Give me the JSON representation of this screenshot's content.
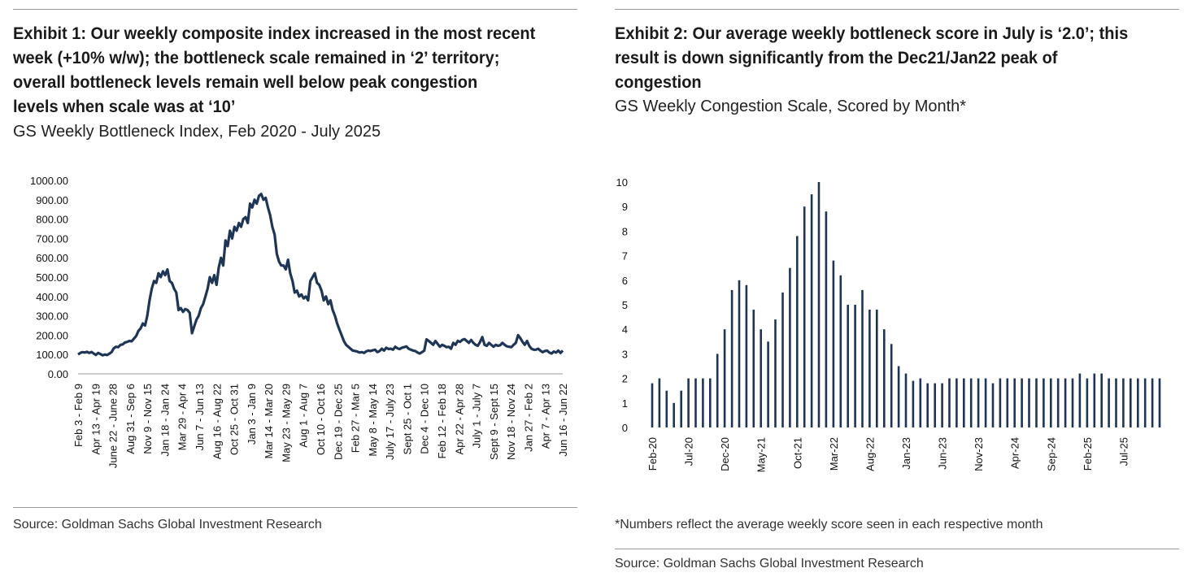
{
  "exhibit1": {
    "title_lines": [
      "Exhibit 1: Our weekly composite index increased in the most recent",
      "week (+10% w/w); the bottleneck scale remained in ‘2’ territory;",
      "overall bottleneck levels remain well below peak congestion",
      "levels when scale was at ‘10’"
    ],
    "subtitle": "GS Weekly Bottleneck Index, Feb 2020 - July 2025",
    "source": "Source: Goldman Sachs Global Investment Research"
  },
  "exhibit2": {
    "title_lines": [
      "Exhibit 2: Our average weekly bottleneck score in July is ‘2.0’; this",
      "result is down significantly from the Dec21/Jan22 peak of",
      "congestion"
    ],
    "subtitle": "GS Weekly Congestion Scale, Scored by Month*",
    "footnote": "*Numbers reflect the average weekly score seen in each respective month",
    "source": "Source: Goldman Sachs Global Investment Research"
  },
  "chart_data": [
    {
      "type": "line",
      "title": "GS Weekly Bottleneck Index, Feb 2020 - July 2025",
      "series_color": "#1f3556",
      "ylim": [
        0,
        1000
      ],
      "y_ticks": [
        "0.00",
        "100.00",
        "200.00",
        "300.00",
        "400.00",
        "500.00",
        "600.00",
        "700.00",
        "800.00",
        "900.00",
        "1000.00"
      ],
      "x_tick_labels": [
        "Feb 3 - Feb 9",
        "Apr 13 - Apr 19",
        "June 22 - June 28",
        "Aug 31 - Sep 6",
        "Nov 9 - Nov 15",
        "Jan 18 - Jan 24",
        "Mar 29 - Apr 4",
        "Jun 7 - Jun 13",
        "Aug 16 - Aug 22",
        "Oct 25 - Oct 31",
        "Jan 3 - Jan 9",
        "Mar 14 - Mar 20",
        "May 23 - May 29",
        "Aug 1 - Aug 7",
        "Oct 10 - Oct 16",
        "Dec 19 - Dec 25",
        "Feb 27 - Mar 5",
        "May 8 - May 14",
        "July 17 - July 23",
        "Sept 25 - Oct 1",
        "Dec 4 - Dec 10",
        "Feb 12 - Feb 18",
        "Apr 22 - Apr 28",
        "July 1 - July 7",
        "Sept 9 - Sept 15",
        "Nov 18 - Nov 24",
        "Jan 27 - Feb 2",
        "Apr 7 - Apr 13",
        "Jun 16 - Jun 22"
      ],
      "values": [
        100,
        108,
        112,
        110,
        114,
        108,
        113,
        105,
        98,
        108,
        102,
        96,
        100,
        97,
        104,
        112,
        132,
        140,
        138,
        150,
        152,
        162,
        165,
        170,
        168,
        182,
        195,
        222,
        235,
        260,
        250,
        300,
        380,
        440,
        480,
        470,
        520,
        500,
        530,
        510,
        540,
        480,
        470,
        440,
        420,
        330,
        340,
        320,
        335,
        330,
        315,
        210,
        245,
        280,
        300,
        340,
        360,
        400,
        440,
        500,
        470,
        510,
        460,
        550,
        600,
        560,
        690,
        660,
        740,
        700,
        760,
        740,
        780,
        760,
        800,
        810,
        780,
        880,
        860,
        900,
        880,
        920,
        930,
        900,
        910,
        860,
        820,
        760,
        720,
        620,
        580,
        560,
        560,
        540,
        590,
        520,
        480,
        420,
        430,
        400,
        410,
        390,
        400,
        380,
        480,
        500,
        520,
        470,
        460,
        430,
        380,
        400,
        360,
        380,
        330,
        300,
        260,
        230,
        200,
        170,
        150,
        140,
        130,
        120,
        118,
        115,
        110,
        112,
        108,
        116,
        120,
        118,
        122,
        125,
        112,
        118,
        130,
        120,
        135,
        128,
        130,
        125,
        140,
        132,
        128,
        135,
        138,
        142,
        130,
        125,
        120,
        118,
        110,
        105,
        112,
        120,
        178,
        170,
        160,
        150,
        170,
        155,
        140,
        150,
        145,
        138,
        140,
        130,
        160,
        150,
        170,
        165,
        175,
        180,
        170,
        160,
        175,
        160,
        150,
        145,
        165,
        190,
        150,
        145,
        160,
        150,
        140,
        150,
        145,
        148,
        160,
        150,
        142,
        140,
        138,
        150,
        160,
        200,
        185,
        165,
        150,
        170,
        145,
        130,
        125,
        125,
        130,
        120,
        112,
        118,
        120,
        110,
        105,
        115,
        110,
        120,
        108,
        120
      ]
    },
    {
      "type": "bar",
      "title": "GS Weekly Congestion Scale, Scored by Month*",
      "series_color": "#1f3556",
      "ylim": [
        0,
        10
      ],
      "y_ticks": [
        "0",
        "1",
        "2",
        "3",
        "4",
        "5",
        "6",
        "7",
        "8",
        "9",
        "10"
      ],
      "x_tick_labels": [
        "Feb-20",
        "Jul-20",
        "Dec-20",
        "May-21",
        "Oct-21",
        "Mar-22",
        "Aug-22",
        "Jan-23",
        "Jun-23",
        "Nov-23",
        "Apr-24",
        "Sep-24",
        "Feb-25",
        "Jul-25"
      ],
      "values": [
        1.8,
        2.0,
        1.5,
        1.0,
        1.5,
        2.0,
        2.0,
        2.0,
        2.0,
        3.0,
        4.0,
        5.6,
        6.0,
        5.8,
        4.8,
        4.0,
        3.5,
        4.4,
        5.5,
        6.5,
        7.8,
        9.0,
        9.5,
        10.0,
        8.8,
        6.8,
        6.2,
        5.0,
        5.0,
        5.6,
        4.8,
        4.8,
        4.0,
        3.4,
        2.5,
        2.2,
        1.9,
        2.0,
        1.8,
        1.8,
        1.8,
        2.0,
        2.0,
        2.0,
        2.0,
        2.0,
        2.0,
        1.8,
        2.0,
        2.0,
        2.0,
        2.0,
        2.0,
        2.0,
        2.0,
        2.0,
        2.0,
        2.0,
        2.0,
        2.2,
        2.0,
        2.2,
        2.2,
        2.0,
        2.0,
        2.0,
        2.0,
        2.0,
        2.0,
        2.0,
        2.0
      ]
    }
  ]
}
